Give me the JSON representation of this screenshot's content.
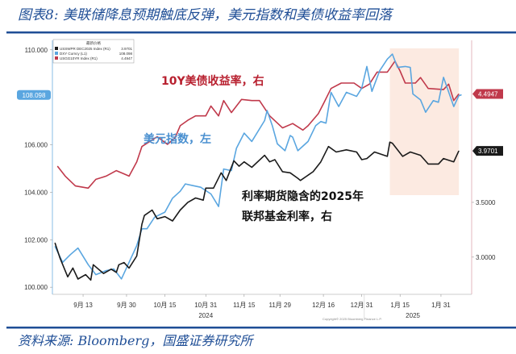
{
  "title": "图表8: 美联储降息预期触底反弹，美元指数和美债收益率回落",
  "source": "资料来源: Bloomberg，国盛证券研究所",
  "copyright": "Copyright© 2025 Bloomberg Finance L.P.",
  "colors": {
    "brand": "#1f4e96",
    "ust10y": "#c0394b",
    "dxy": "#5aa6e0",
    "futures": "#1a1a1a",
    "highlight": "#fbe6dc"
  },
  "chart_data": {
    "type": "line",
    "title": "图表8: 美联储降息预期触底反弹，美元指数和美债收益率回落",
    "x_unit": "days since 2024-09-01",
    "xlim": [
      0,
      164
    ],
    "x_ticks": [
      {
        "day": 12,
        "label": "9月 13"
      },
      {
        "day": 29,
        "label": "9月 30"
      },
      {
        "day": 44,
        "label": "10月 15"
      },
      {
        "day": 60,
        "label": "10月 31"
      },
      {
        "day": 75,
        "label": "11月 15"
      },
      {
        "day": 89,
        "label": "11月 29"
      },
      {
        "day": 106,
        "label": "12月 16"
      },
      {
        "day": 121,
        "label": "12月 31"
      },
      {
        "day": 136,
        "label": "1月 15"
      },
      {
        "day": 152,
        "label": "1月 31"
      }
    ],
    "year_labels": [
      {
        "day": 60,
        "label": "2024"
      },
      {
        "day": 141,
        "label": "2025"
      }
    ],
    "year_divider_day": 122,
    "left_axis": {
      "ylim": [
        99.7,
        110.4
      ],
      "ticks": [
        "100.000",
        "102.000",
        "104.000",
        "106.000",
        "110.000"
      ],
      "tick_values": [
        100,
        102,
        104,
        106,
        110
      ],
      "last_value_label": "108.098",
      "last_value": 108.098
    },
    "right_axis": {
      "ylim": [
        2.66,
        4.98
      ],
      "ticks": [
        "3.0000",
        "3.5000"
      ],
      "tick_values": [
        3.0,
        3.5
      ]
    },
    "highlight": {
      "x_start_day": 132,
      "x_end_day": 159
    },
    "legend": {
      "title": "最新价格",
      "items": [
        {
          "name": "USSWPR DEC2025 Index (R1)",
          "value": "3.9701"
        },
        {
          "name": "DXY Curncy (L1)",
          "value": "108.098"
        },
        {
          "name": "USGG10YR Index (R1)",
          "value": "4.4947"
        }
      ],
      "placement": "top-left"
    },
    "annotations": {
      "ust10y": "10Y美债收益率，右",
      "dxy": "美元指数，左",
      "futures_line1": "利率期货隐含的2025年",
      "futures_line2": "联邦基金利率，右"
    },
    "series": [
      {
        "name": "USGG10YR Index",
        "axis": "right",
        "last_label": "4.4947",
        "x": [
          2,
          5,
          9,
          14,
          17,
          21,
          25,
          28,
          30,
          33,
          35,
          39,
          41,
          45,
          48,
          50,
          53,
          56,
          60,
          62,
          65,
          67,
          70,
          74,
          78,
          81,
          85,
          90,
          94,
          98,
          100,
          104,
          106,
          109,
          113,
          118,
          121,
          124,
          127,
          131,
          134,
          136,
          138,
          142,
          144,
          147,
          153,
          155,
          157,
          159
        ],
        "values": [
          3.83,
          3.74,
          3.65,
          3.63,
          3.71,
          3.74,
          3.79,
          3.76,
          3.74,
          3.87,
          4.01,
          4.07,
          4.1,
          4.03,
          4.09,
          4.2,
          4.25,
          4.29,
          4.29,
          4.38,
          4.29,
          4.43,
          4.32,
          4.44,
          4.43,
          4.43,
          4.29,
          4.18,
          4.22,
          4.16,
          4.2,
          4.31,
          4.4,
          4.54,
          4.59,
          4.59,
          4.54,
          4.58,
          4.69,
          4.69,
          4.79,
          4.7,
          4.59,
          4.59,
          4.64,
          4.54,
          4.53,
          4.58,
          4.43,
          4.49
        ]
      },
      {
        "name": "DXY Curncy",
        "axis": "left",
        "last_label": "108.098",
        "x": [
          1,
          4,
          7,
          10,
          14,
          17,
          21,
          24,
          27,
          30,
          33,
          35,
          37,
          40,
          44,
          47,
          50,
          52,
          55,
          58,
          62,
          65,
          67,
          70,
          72,
          75,
          78,
          83,
          84,
          86,
          88,
          91,
          93,
          94,
          96,
          100,
          103,
          105,
          107,
          109,
          112,
          115,
          119,
          121,
          123,
          125,
          128,
          131,
          133,
          135,
          138,
          140,
          141,
          144,
          146,
          149,
          151,
          153,
          157,
          159,
          160
        ],
        "values": [
          101.72,
          101.05,
          101.37,
          101.65,
          100.95,
          100.53,
          100.7,
          100.77,
          100.35,
          101.05,
          101.75,
          102.46,
          102.46,
          102.95,
          103.16,
          103.75,
          104.04,
          104.35,
          104.28,
          104.21,
          103.93,
          103.4,
          104.98,
          104.91,
          105.86,
          106.49,
          106.14,
          107.02,
          107.44,
          106.81,
          106.04,
          105.75,
          106.39,
          106.32,
          105.75,
          106.14,
          106.81,
          106.98,
          106.91,
          108.21,
          107.61,
          108.21,
          108.04,
          108.39,
          109.3,
          108.25,
          109.12,
          109.61,
          109.82,
          109.26,
          109.3,
          109.26,
          108.14,
          107.89,
          107.37,
          107.86,
          107.79,
          108.84,
          107.61,
          108.07,
          108.1
        ]
      },
      {
        "name": "USSWPR DEC2025 Index",
        "axis": "right",
        "last_label": "3.9701",
        "x": [
          1,
          3,
          6,
          8,
          10,
          13,
          15,
          16,
          20,
          23,
          25,
          26,
          28,
          30,
          33,
          35,
          36,
          39,
          41,
          44,
          47,
          50,
          53,
          56,
          59,
          60,
          63,
          66,
          68,
          71,
          73,
          75,
          78,
          83,
          85,
          87,
          90,
          93,
          96,
          97,
          102,
          105,
          108,
          111,
          115,
          119,
          121,
          123,
          126,
          131,
          132,
          133,
          137,
          140,
          144,
          147,
          151,
          153,
          157,
          159
        ],
        "values": [
          3.13,
          2.99,
          2.82,
          2.9,
          2.8,
          2.84,
          2.79,
          2.93,
          2.85,
          2.89,
          2.86,
          2.93,
          2.95,
          2.9,
          3.01,
          3.3,
          3.38,
          3.43,
          3.35,
          3.37,
          3.33,
          3.43,
          3.5,
          3.54,
          3.52,
          3.63,
          3.63,
          3.77,
          3.7,
          3.88,
          3.83,
          3.87,
          3.82,
          3.93,
          3.87,
          3.89,
          3.78,
          3.77,
          3.72,
          3.7,
          3.78,
          3.87,
          4.01,
          3.96,
          3.98,
          3.96,
          3.89,
          3.9,
          3.96,
          3.92,
          4.05,
          4.04,
          3.92,
          3.96,
          3.93,
          3.85,
          3.85,
          3.9,
          3.87,
          3.97
        ]
      }
    ]
  }
}
